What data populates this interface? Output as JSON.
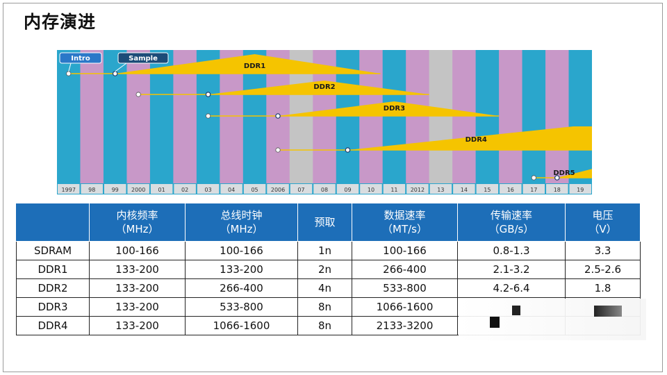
{
  "page": {
    "title": "内存演进"
  },
  "chart_data": {
    "type": "gantt",
    "categories": [
      "1997",
      "98",
      "99",
      "2000",
      "01",
      "02",
      "03",
      "04",
      "05",
      "2006",
      "07",
      "08",
      "09",
      "10",
      "11",
      "2012",
      "13",
      "14",
      "15",
      "16",
      "17",
      "18",
      "19"
    ],
    "legend": [
      "Intro",
      "Sample"
    ],
    "series": [
      {
        "name": "DDR1",
        "intro": "1997",
        "sample": "99",
        "peak": "05"
      },
      {
        "name": "DDR2",
        "intro": "2000",
        "sample": "03",
        "peak": "08"
      },
      {
        "name": "DDR3",
        "intro": "03",
        "sample": "2006",
        "peak": "11"
      },
      {
        "name": "DDR4",
        "intro": "2006",
        "sample": "09",
        "peak": "19"
      },
      {
        "name": "DDR5",
        "intro": "17",
        "sample": "18",
        "peak": "19"
      }
    ],
    "colors": {
      "teal": "#2aa6cc",
      "pink": "#c898c8",
      "gray": "#c4c4c4",
      "gold": "#f5c400"
    }
  },
  "table": {
    "headers": [
      {
        "line1": "",
        "line2": ""
      },
      {
        "line1": "内核频率",
        "line2": "（MHz）"
      },
      {
        "line1": "总线时钟",
        "line2": "（MHz）"
      },
      {
        "line1": "预取",
        "line2": ""
      },
      {
        "line1": "数据速率",
        "line2": "（MT/s）"
      },
      {
        "line1": "传输速率",
        "line2": "（GB/s）"
      },
      {
        "line1": "电压",
        "line2": "（V）"
      }
    ],
    "rows": [
      [
        "SDRAM",
        "100-166",
        "100-166",
        "1n",
        "100-166",
        "0.8-1.3",
        "3.3"
      ],
      [
        "DDR1",
        "133-200",
        "133-200",
        "2n",
        "266-400",
        "2.1-3.2",
        "2.5-2.6"
      ],
      [
        "DDR2",
        "133-200",
        "266-400",
        "4n",
        "533-800",
        "4.2-6.4",
        "1.8"
      ],
      [
        "DDR3",
        "133-200",
        "533-800",
        "8n",
        "1066-1600",
        "",
        ""
      ],
      [
        "DDR4",
        "133-200",
        "1066-1600",
        "8n",
        "2133-3200",
        "",
        ""
      ]
    ]
  }
}
